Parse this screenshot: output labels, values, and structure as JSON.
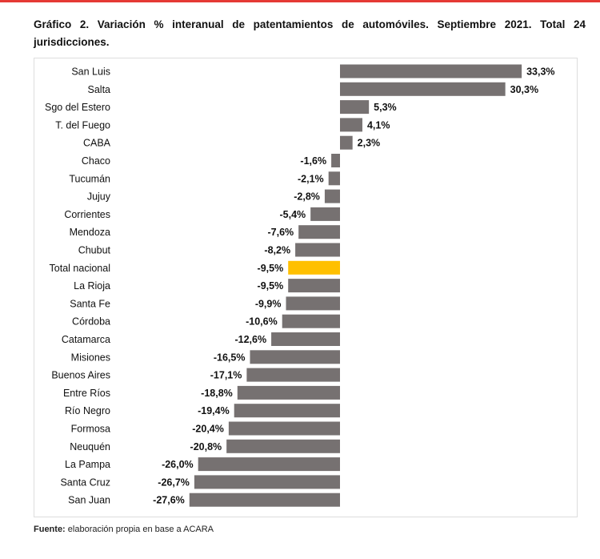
{
  "title": "Gráfico 2. Variación % interanual de patentamientos de automóviles. Septiembre 2021. Total 24 jurisdicciones.",
  "footer": {
    "label": "Fuente:",
    "text": " elaboración propia en base a ACARA"
  },
  "colors": {
    "bar": "#767171",
    "highlight": "#ffc000",
    "accent": "#e53935"
  },
  "chart_data": {
    "type": "bar",
    "orientation": "horizontal",
    "title": "Gráfico 2. Variación % interanual de patentamientos de automóviles. Septiembre 2021. Total 24 jurisdicciones.",
    "categories": [
      "San Luis",
      "Salta",
      "Sgo del Estero",
      "T. del Fuego",
      "CABA",
      "Chaco",
      "Tucumán",
      "Jujuy",
      "Corrientes",
      "Mendoza",
      "Chubut",
      "Total nacional",
      "La Rioja",
      "Santa Fe",
      "Córdoba",
      "Catamarca",
      "Misiones",
      "Buenos Aires",
      "Entre Ríos",
      "Río Negro",
      "Formosa",
      "Neuquén",
      "La Pampa",
      "Santa Cruz",
      "San Juan"
    ],
    "values": [
      33.3,
      30.3,
      5.3,
      4.1,
      2.3,
      -1.6,
      -2.1,
      -2.8,
      -5.4,
      -7.6,
      -8.2,
      -9.5,
      -9.5,
      -9.9,
      -10.6,
      -12.6,
      -16.5,
      -17.1,
      -18.8,
      -19.4,
      -20.4,
      -20.8,
      -26.0,
      -26.7,
      -27.6
    ],
    "labels": [
      "33,3%",
      "30,3%",
      "5,3%",
      "4,1%",
      "2,3%",
      "-1,6%",
      "-2,1%",
      "-2,8%",
      "-5,4%",
      "-7,6%",
      "-8,2%",
      "-9,5%",
      "-9,5%",
      "-9,9%",
      "-10,6%",
      "-12,6%",
      "-16,5%",
      "-17,1%",
      "-18,8%",
      "-19,4%",
      "-20,4%",
      "-20,8%",
      "-26,0%",
      "-26,7%",
      "-27,6%"
    ],
    "highlight": "Total nacional",
    "xlabel": "",
    "ylabel": "",
    "grid": false,
    "legend": "none"
  }
}
